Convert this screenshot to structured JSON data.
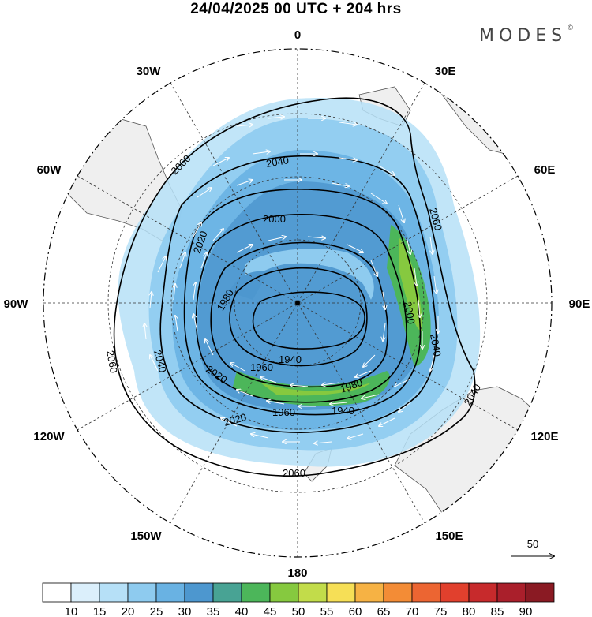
{
  "header": {
    "title": "24/04/2025  00 UTC  + 204 hrs",
    "brand": "MODES",
    "brand_mark": "©"
  },
  "map": {
    "projection": "south-polar-stereographic",
    "longitude_labels": [
      "0",
      "30E",
      "60E",
      "90E",
      "120E",
      "150E",
      "180",
      "150W",
      "120W",
      "90W",
      "60W",
      "30W"
    ],
    "contour_labels": [
      "2060",
      "2040",
      "2020",
      "2000",
      "1980",
      "1960",
      "1940",
      "2060",
      "2040",
      "2020",
      "1980",
      "1960",
      "1940",
      "2000",
      "2040",
      "2060",
      "2020",
      "2060",
      "2040",
      "2060"
    ],
    "reference_vector": "50",
    "colors": {
      "land": "#efefef",
      "coast": "#555555"
    }
  },
  "colorbar": {
    "labels": [
      "10",
      "15",
      "20",
      "25",
      "30",
      "35",
      "40",
      "45",
      "50",
      "55",
      "60",
      "65",
      "70",
      "75",
      "80",
      "85",
      "90"
    ],
    "colors": [
      "#ffffff",
      "#dbeffb",
      "#b6e0f7",
      "#8ecbef",
      "#69b2e3",
      "#4d97cf",
      "#48a394",
      "#4cb65a",
      "#86c93f",
      "#c2dc4a",
      "#f6df56",
      "#f6b244",
      "#f38c36",
      "#ec6532",
      "#e1402d",
      "#c72a2c",
      "#aa1f2b",
      "#8a1a23"
    ]
  }
}
